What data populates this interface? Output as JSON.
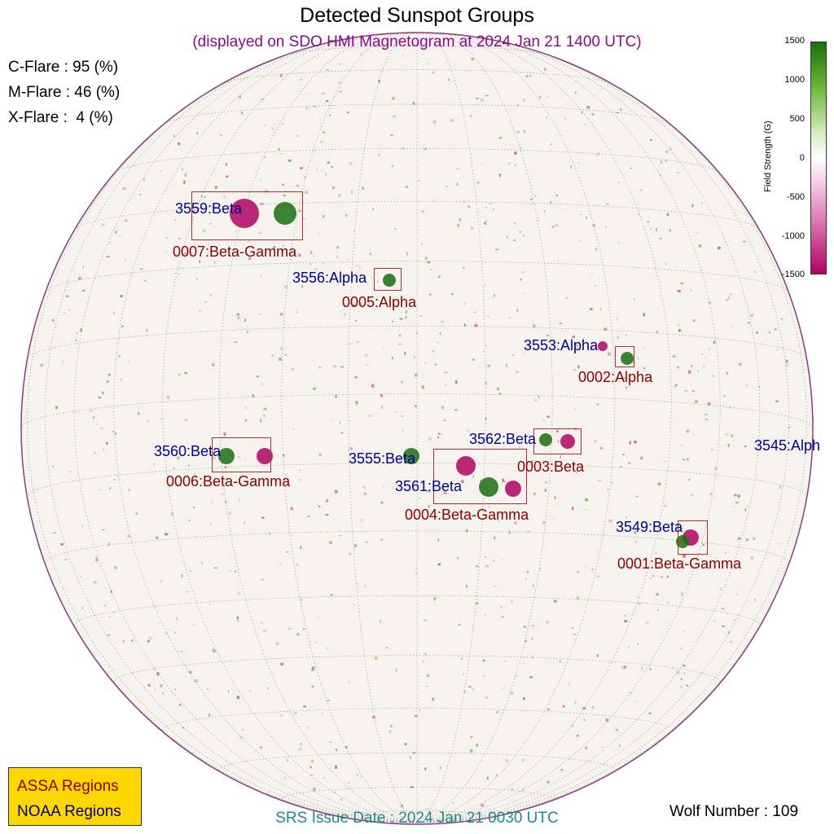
{
  "header": {
    "title": "Detected Sunspot Groups",
    "subtitle": "(displayed on SDO HMI Magnetogram at 2024 Jan 21 1400 UTC)"
  },
  "flare_probabilities": [
    {
      "label": "C-Flare : 95 (%)"
    },
    {
      "label": "M-Flare : 46 (%)"
    },
    {
      "label": "X-Flare :  4 (%)"
    }
  ],
  "noaa_regions": [
    {
      "label": "3559:Beta"
    },
    {
      "label": "3556:Alpha"
    },
    {
      "label": "3553:Alpha"
    },
    {
      "label": "3560:Beta"
    },
    {
      "label": "3555:Beta"
    },
    {
      "label": "3562:Beta"
    },
    {
      "label": "3561:Beta"
    },
    {
      "label": "3545:Alph"
    },
    {
      "label": "3549:Beta"
    }
  ],
  "assa_regions": [
    {
      "label": "0007:Beta-Gamma"
    },
    {
      "label": "0005:Alpha"
    },
    {
      "label": "0002:Alpha"
    },
    {
      "label": "0006:Beta-Gamma"
    },
    {
      "label": "0003:Beta"
    },
    {
      "label": "0004:Beta-Gamma"
    },
    {
      "label": "0001:Beta-Gamma"
    }
  ],
  "colorbar": {
    "title": "Field Strength (G)",
    "ticks": [
      "1500",
      "1000",
      "500",
      "0",
      "-500",
      "-1000",
      "-1500"
    ],
    "colors": {
      "positive": "#1a6e10",
      "zero": "#ffffff",
      "negative": "#b00262"
    }
  },
  "legend": {
    "assa_label": "ASSA Regions",
    "noaa_label": "NOAA Regions",
    "colors": {
      "assa": "#8b0000",
      "noaa": "#00008b",
      "background": "#ffd700"
    }
  },
  "footer": {
    "srs_issue": "SRS Issue Date : 2024 Jan 21 0030 UTC",
    "wolf_number": "Wolf Number : 109"
  }
}
